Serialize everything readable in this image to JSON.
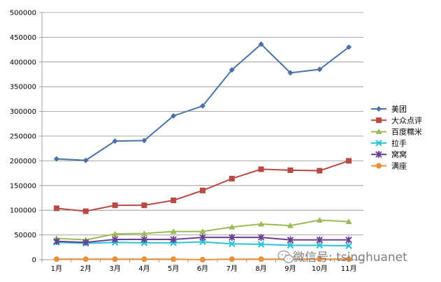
{
  "chart_data": {
    "type": "line",
    "title": "",
    "xlabel": "",
    "ylabel": "",
    "categories": [
      "1月",
      "2月",
      "3月",
      "4月",
      "5月",
      "6月",
      "7月",
      "8月",
      "9月",
      "10月",
      "11月"
    ],
    "ylim": [
      0,
      500000
    ],
    "yticks": [
      "0",
      "50000",
      "100000",
      "150000",
      "200000",
      "250000",
      "300000",
      "350000",
      "400000",
      "450000",
      "500000"
    ],
    "grid": "horizontal",
    "legend_position": "right",
    "series": [
      {
        "name": "美团",
        "color": "#4a72a6",
        "marker": "diamond",
        "values": [
          204000,
          201000,
          240000,
          241000,
          291000,
          311000,
          384000,
          436000,
          378000,
          385000,
          430000
        ]
      },
      {
        "name": "大众点评",
        "color": "#b84a45",
        "marker": "square",
        "values": [
          104000,
          98000,
          110000,
          110000,
          120000,
          140000,
          164000,
          183000,
          181000,
          180000,
          200000
        ]
      },
      {
        "name": "百度糯米",
        "color": "#9abb59",
        "marker": "triangle",
        "values": [
          43000,
          40000,
          52000,
          53000,
          57000,
          57000,
          66000,
          72000,
          69000,
          80000,
          77000
        ]
      },
      {
        "name": "拉手",
        "color": "#2dc2d9",
        "marker": "x",
        "values": [
          35000,
          33000,
          35000,
          34000,
          34000,
          36000,
          32000,
          31000,
          29000,
          29000,
          28000
        ]
      },
      {
        "name": "窝窝",
        "color": "#6a3d8f",
        "marker": "star",
        "values": [
          37000,
          35000,
          41000,
          41000,
          41000,
          45000,
          45000,
          45000,
          40000,
          40000,
          40000
        ]
      },
      {
        "name": "满座",
        "color": "#e8903a",
        "marker": "circle",
        "values": [
          1000,
          1000,
          1000,
          1000,
          1000,
          0,
          1000,
          1000,
          1000,
          1000,
          1000
        ]
      }
    ]
  },
  "watermark": {
    "text": "微信号: tsinghuanet",
    "icon": "wechat-icon"
  }
}
